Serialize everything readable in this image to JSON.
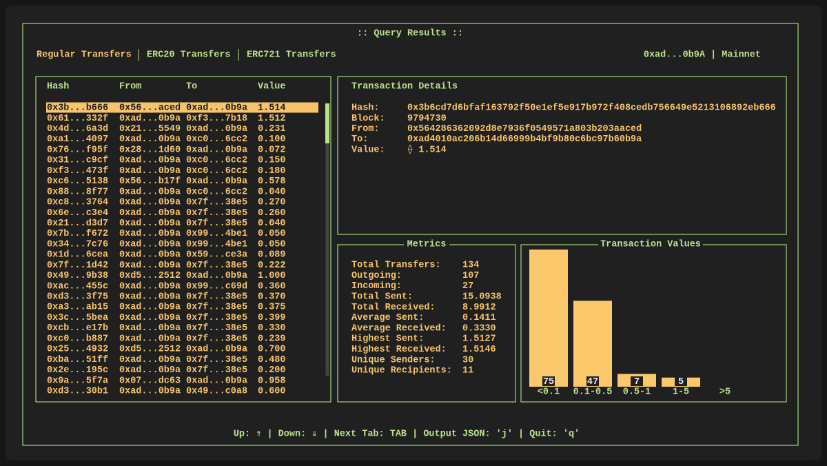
{
  "title": ":: Query Results ::",
  "tabs": [
    "Regular Transfers",
    "ERC20 Transfers",
    "ERC721 Transfers"
  ],
  "active_tab": 0,
  "account": "0xad...0b9A | Mainnet",
  "table": {
    "headers": [
      "Hash",
      "From",
      "To",
      "Value"
    ],
    "selected": 0,
    "rows": [
      [
        "0x3b...b666",
        "0x56...aced",
        "0xad...0b9a",
        "1.514"
      ],
      [
        "0x61...332f",
        "0xad...0b9a",
        "0xf3...7b18",
        "1.512"
      ],
      [
        "0x4d...6a3d",
        "0x21...5549",
        "0xad...0b9a",
        "0.231"
      ],
      [
        "0xa1...4097",
        "0xad...0b9a",
        "0xc0...6cc2",
        "0.100"
      ],
      [
        "0x76...f95f",
        "0x28...1d60",
        "0xad...0b9a",
        "0.072"
      ],
      [
        "0x31...c9cf",
        "0xad...0b9a",
        "0xc0...6cc2",
        "0.150"
      ],
      [
        "0xf3...473f",
        "0xad...0b9a",
        "0xc0...6cc2",
        "0.180"
      ],
      [
        "0xc6...5138",
        "0x56...b17f",
        "0xad...0b9a",
        "0.578"
      ],
      [
        "0x88...8f77",
        "0xad...0b9a",
        "0xc0...6cc2",
        "0.040"
      ],
      [
        "0xc8...3764",
        "0xad...0b9a",
        "0x7f...38e5",
        "0.270"
      ],
      [
        "0x6e...c3e4",
        "0xad...0b9a",
        "0x7f...38e5",
        "0.260"
      ],
      [
        "0x21...d3d7",
        "0xad...0b9a",
        "0x7f...38e5",
        "0.040"
      ],
      [
        "0x7b...f672",
        "0xad...0b9a",
        "0x99...4be1",
        "0.050"
      ],
      [
        "0x34...7c76",
        "0xad...0b9a",
        "0x99...4be1",
        "0.050"
      ],
      [
        "0x1d...6cea",
        "0xad...0b9a",
        "0x59...ce3a",
        "0.089"
      ],
      [
        "0x7f...1d42",
        "0xad...0b9a",
        "0x7f...38e5",
        "0.222"
      ],
      [
        "0x49...9b38",
        "0xd5...2512",
        "0xad...0b9a",
        "1.000"
      ],
      [
        "0xac...455c",
        "0xad...0b9a",
        "0x99...c69d",
        "0.360"
      ],
      [
        "0xd3...3f75",
        "0xad...0b9a",
        "0x7f...38e5",
        "0.370"
      ],
      [
        "0xa3...ab15",
        "0xad...0b9a",
        "0x7f...38e5",
        "0.375"
      ],
      [
        "0x3c...5bea",
        "0xad...0b9a",
        "0x7f...38e5",
        "0.399"
      ],
      [
        "0xcb...e17b",
        "0xad...0b9a",
        "0x7f...38e5",
        "0.330"
      ],
      [
        "0xc0...b887",
        "0xad...0b9a",
        "0x7f...38e5",
        "0.239"
      ],
      [
        "0x25...4932",
        "0xd5...2512",
        "0xad...0b9a",
        "0.700"
      ],
      [
        "0xba...51ff",
        "0xad...0b9a",
        "0x7f...38e5",
        "0.480"
      ],
      [
        "0x2e...195c",
        "0xad...0b9a",
        "0x7f...38e5",
        "0.200"
      ],
      [
        "0x9a...5f7a",
        "0x07...dc63",
        "0xad...0b9a",
        "0.958"
      ],
      [
        "0xd3...30b1",
        "0xad...0b9a",
        "0x49...c0a8",
        "0.600"
      ]
    ]
  },
  "details": {
    "title": "Transaction Details",
    "fields": [
      [
        "Hash:",
        "0x3b6cd7d6bfaf163792f50e1ef5e917b972f408cedb756649e5213106892eb666"
      ],
      [
        "Block:",
        "9794730"
      ],
      [
        "From:",
        "0x564286362092d8e7936f0549571a803b203aaced"
      ],
      [
        "To:",
        "0xad4010ac206b14d66999b4bf9b80c6bc97b60b9a"
      ],
      [
        "Value:",
        "⟠ 1.514"
      ]
    ]
  },
  "metrics": {
    "title": "Metrics",
    "rows": [
      [
        "Total Transfers:",
        "134"
      ],
      [
        "Outgoing:",
        "107"
      ],
      [
        "Incoming:",
        "27"
      ],
      [
        "Total Sent:",
        "15.0938"
      ],
      [
        "Total Received:",
        "8.9912"
      ],
      [
        "Average Sent:",
        "0.1411"
      ],
      [
        "Average Received:",
        "0.3330"
      ],
      [
        "Highest Sent:",
        "1.5127"
      ],
      [
        "Highest Received:",
        "1.5146"
      ],
      [
        "Unique Senders:",
        "30"
      ],
      [
        "Unique Recipients:",
        "11"
      ]
    ]
  },
  "chart_data": {
    "type": "bar",
    "title": "Transaction Values",
    "categories": [
      "<0.1",
      "0.1-0.5",
      "0.5-1",
      "1-5",
      ">5"
    ],
    "values": [
      75,
      47,
      7,
      5,
      0
    ],
    "color": "#fbc96b"
  },
  "footer": "Up: ⇑ | Down: ⇓ | Next Tab: TAB | Output JSON: 'j' | Quit: 'q'"
}
